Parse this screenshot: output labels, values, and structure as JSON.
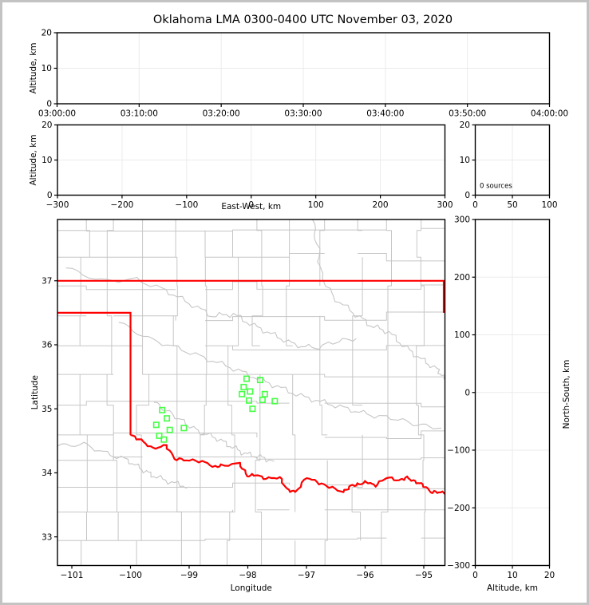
{
  "title": "Oklahoma LMA 0300-0400 UTC November 03, 2020",
  "colors": {
    "station": "#44ff44",
    "state_border": "#ff0000",
    "county": "#c6c6c6",
    "river": "#c6c6c6",
    "grid": "#ebebeb",
    "spine": "#000000",
    "frame": "#c3c3c3",
    "background": "#ffffff"
  },
  "chart_data": [
    {
      "id": "time_height",
      "type": "scatter",
      "ylabel": "Altitude, km",
      "xlim": [
        0,
        3600
      ],
      "ylim": [
        0,
        20
      ],
      "xticks": [
        {
          "v": 0,
          "label": "03:00:00"
        },
        {
          "v": 600,
          "label": "03:10:00"
        },
        {
          "v": 1200,
          "label": "03:20:00"
        },
        {
          "v": 1800,
          "label": "03:30:00"
        },
        {
          "v": 2400,
          "label": "03:40:00"
        },
        {
          "v": 3000,
          "label": "03:50:00"
        },
        {
          "v": 3600,
          "label": "04:00:00"
        }
      ],
      "yticks": [
        {
          "v": 0,
          "label": "0"
        },
        {
          "v": 10,
          "label": "10"
        },
        {
          "v": 20,
          "label": "20"
        }
      ],
      "grid_x": [
        600,
        1200,
        1800,
        2400,
        3000
      ],
      "grid_y": [
        10
      ],
      "points": []
    },
    {
      "id": "ew_height",
      "type": "scatter",
      "xlabel": "East-West, km",
      "ylabel": "Altitude, km",
      "xlim": [
        -300,
        300
      ],
      "ylim": [
        0,
        20
      ],
      "xticks": [
        {
          "v": -300,
          "label": "−300"
        },
        {
          "v": -200,
          "label": "−200"
        },
        {
          "v": -100,
          "label": "−100"
        },
        {
          "v": 0,
          "label": "0"
        },
        {
          "v": 100,
          "label": "100"
        },
        {
          "v": 200,
          "label": "200"
        },
        {
          "v": 300,
          "label": "300"
        }
      ],
      "yticks": [
        {
          "v": 0,
          "label": "0"
        },
        {
          "v": 10,
          "label": "10"
        },
        {
          "v": 20,
          "label": "20"
        }
      ],
      "grid_x": [
        -200,
        -100,
        0,
        100,
        200
      ],
      "grid_y": [
        10
      ],
      "points": []
    },
    {
      "id": "source_histogram",
      "type": "bar",
      "annotation": "0 sources",
      "xlim": [
        0,
        100
      ],
      "ylim": [
        0,
        20
      ],
      "xticks": [
        {
          "v": 0,
          "label": "0"
        },
        {
          "v": 50,
          "label": "50"
        },
        {
          "v": 100,
          "label": "100"
        }
      ],
      "yticks": [
        {
          "v": 0,
          "label": "0"
        },
        {
          "v": 10,
          "label": "10"
        },
        {
          "v": 20,
          "label": "20"
        }
      ],
      "grid_x": [
        50
      ],
      "grid_y": [
        10
      ],
      "values": []
    },
    {
      "id": "map",
      "type": "scatter",
      "xlabel": "Longitude",
      "ylabel": "Latitude",
      "xlim": [
        -101.245,
        -94.639
      ],
      "ylim": [
        32.553,
        37.957
      ],
      "xticks": [
        {
          "v": -101,
          "label": "−101"
        },
        {
          "v": -100,
          "label": "−100"
        },
        {
          "v": -99,
          "label": "−99"
        },
        {
          "v": -98,
          "label": "−98"
        },
        {
          "v": -97,
          "label": "−97"
        },
        {
          "v": -96,
          "label": "−96"
        },
        {
          "v": -95,
          "label": "−95"
        }
      ],
      "yticks": [
        {
          "v": 33,
          "label": "33"
        },
        {
          "v": 34,
          "label": "34"
        },
        {
          "v": 35,
          "label": "35"
        },
        {
          "v": 36,
          "label": "36"
        },
        {
          "v": 37,
          "label": "37"
        }
      ],
      "grid_x": [],
      "grid_y": [],
      "stations_lonlat": [
        [
          -98.02,
          35.47
        ],
        [
          -97.79,
          35.45
        ],
        [
          -98.07,
          35.34
        ],
        [
          -97.96,
          35.27
        ],
        [
          -98.1,
          35.23
        ],
        [
          -97.71,
          35.23
        ],
        [
          -97.98,
          35.13
        ],
        [
          -97.75,
          35.14
        ],
        [
          -97.54,
          35.12
        ],
        [
          -97.92,
          35.0
        ],
        [
          -99.46,
          34.98
        ],
        [
          -99.38,
          34.85
        ],
        [
          -99.56,
          34.75
        ],
        [
          -99.33,
          34.67
        ],
        [
          -99.09,
          34.7
        ],
        [
          -99.51,
          34.58
        ],
        [
          -99.43,
          34.52
        ]
      ],
      "state_border": [
        [
          [
            -101.3,
            37.0
          ],
          [
            -94.6,
            37.0
          ]
        ],
        [
          [
            -101.3,
            36.5
          ],
          [
            -100.0,
            36.5
          ],
          [
            -100.0,
            34.59
          ]
        ],
        [
          [
            -94.66,
            37.0
          ],
          [
            -94.66,
            36.5
          ]
        ]
      ],
      "red_river": [
        [
          -100.0,
          34.59
        ],
        [
          -99.82,
          34.51
        ],
        [
          -99.62,
          34.38
        ],
        [
          -99.39,
          34.43
        ],
        [
          -99.25,
          34.22
        ],
        [
          -99.05,
          34.2
        ],
        [
          -98.78,
          34.18
        ],
        [
          -98.55,
          34.09
        ],
        [
          -98.46,
          34.11
        ],
        [
          -98.14,
          34.15
        ],
        [
          -98.01,
          33.95
        ],
        [
          -97.87,
          33.97
        ],
        [
          -97.69,
          33.91
        ],
        [
          -97.46,
          33.93
        ],
        [
          -97.33,
          33.74
        ],
        [
          -97.19,
          33.7
        ],
        [
          -96.99,
          33.93
        ],
        [
          -96.78,
          33.84
        ],
        [
          -96.61,
          33.78
        ],
        [
          -96.37,
          33.7
        ],
        [
          -96.24,
          33.8
        ],
        [
          -96.1,
          33.82
        ],
        [
          -95.97,
          33.86
        ],
        [
          -95.83,
          33.8
        ],
        [
          -95.63,
          33.93
        ],
        [
          -95.42,
          33.88
        ],
        [
          -95.29,
          33.93
        ],
        [
          -95.15,
          33.86
        ],
        [
          -95.02,
          33.82
        ],
        [
          -94.88,
          33.7
        ],
        [
          -94.74,
          33.7
        ],
        [
          -94.6,
          33.68
        ]
      ],
      "rivers": [
        [
          [
            -101.1,
            37.2
          ],
          [
            -100.5,
            37.0
          ],
          [
            -99.9,
            37.02
          ],
          [
            -99.4,
            36.85
          ],
          [
            -99.0,
            36.65
          ],
          [
            -98.6,
            36.45
          ],
          [
            -98.25,
            36.48
          ],
          [
            -97.9,
            36.3
          ],
          [
            -97.55,
            36.15
          ],
          [
            -97.2,
            36.0
          ],
          [
            -96.85,
            35.95
          ],
          [
            -96.5,
            36.05
          ],
          [
            -96.15,
            36.1
          ]
        ],
        [
          [
            -96.9,
            37.96
          ],
          [
            -96.8,
            37.5
          ],
          [
            -96.75,
            37.1
          ],
          [
            -96.55,
            36.75
          ],
          [
            -96.2,
            36.5
          ],
          [
            -95.9,
            36.3
          ],
          [
            -95.6,
            36.2
          ],
          [
            -95.3,
            35.95
          ],
          [
            -95.0,
            35.75
          ],
          [
            -94.75,
            35.6
          ],
          [
            -94.64,
            35.45
          ]
        ],
        [
          [
            -100.2,
            36.35
          ],
          [
            -99.7,
            36.1
          ],
          [
            -99.2,
            35.95
          ],
          [
            -98.75,
            35.8
          ],
          [
            -98.3,
            35.65
          ],
          [
            -97.9,
            35.5
          ],
          [
            -97.5,
            35.35
          ],
          [
            -97.1,
            35.2
          ],
          [
            -96.7,
            35.1
          ],
          [
            -96.3,
            35.0
          ],
          [
            -95.9,
            34.9
          ],
          [
            -95.5,
            34.85
          ],
          [
            -95.1,
            34.75
          ],
          [
            -94.7,
            34.7
          ]
        ],
        [
          [
            -99.6,
            35.1
          ],
          [
            -99.35,
            34.95
          ],
          [
            -99.1,
            34.8
          ],
          [
            -98.85,
            34.65
          ],
          [
            -98.55,
            34.55
          ],
          [
            -98.3,
            34.42
          ],
          [
            -98.05,
            34.3
          ],
          [
            -97.8,
            34.25
          ],
          [
            -97.55,
            34.18
          ]
        ],
        [
          [
            -101.24,
            34.42
          ],
          [
            -100.8,
            34.45
          ],
          [
            -100.4,
            34.3
          ],
          [
            -100.05,
            34.2
          ],
          [
            -99.8,
            34.05
          ],
          [
            -99.6,
            33.95
          ],
          [
            -99.3,
            33.85
          ],
          [
            -99.0,
            33.78
          ]
        ]
      ],
      "points": []
    },
    {
      "id": "ns_height",
      "type": "scatter",
      "xlabel": "Altitude, km",
      "ylabel": "North-South, km",
      "xlim": [
        0,
        20
      ],
      "ylim": [
        -300,
        300
      ],
      "xticks": [
        {
          "v": 0,
          "label": "0"
        },
        {
          "v": 10,
          "label": "10"
        },
        {
          "v": 20,
          "label": "20"
        }
      ],
      "yticks": [
        {
          "v": 300,
          "label": "300"
        },
        {
          "v": 200,
          "label": "200"
        },
        {
          "v": 100,
          "label": "100"
        },
        {
          "v": 0,
          "label": "0"
        },
        {
          "v": -100,
          "label": "−100"
        },
        {
          "v": -200,
          "label": "−200"
        },
        {
          "v": -300,
          "label": "−300"
        }
      ],
      "grid_x": [
        10
      ],
      "grid_y": [
        200,
        100,
        0,
        -100,
        -200
      ],
      "points": []
    }
  ]
}
